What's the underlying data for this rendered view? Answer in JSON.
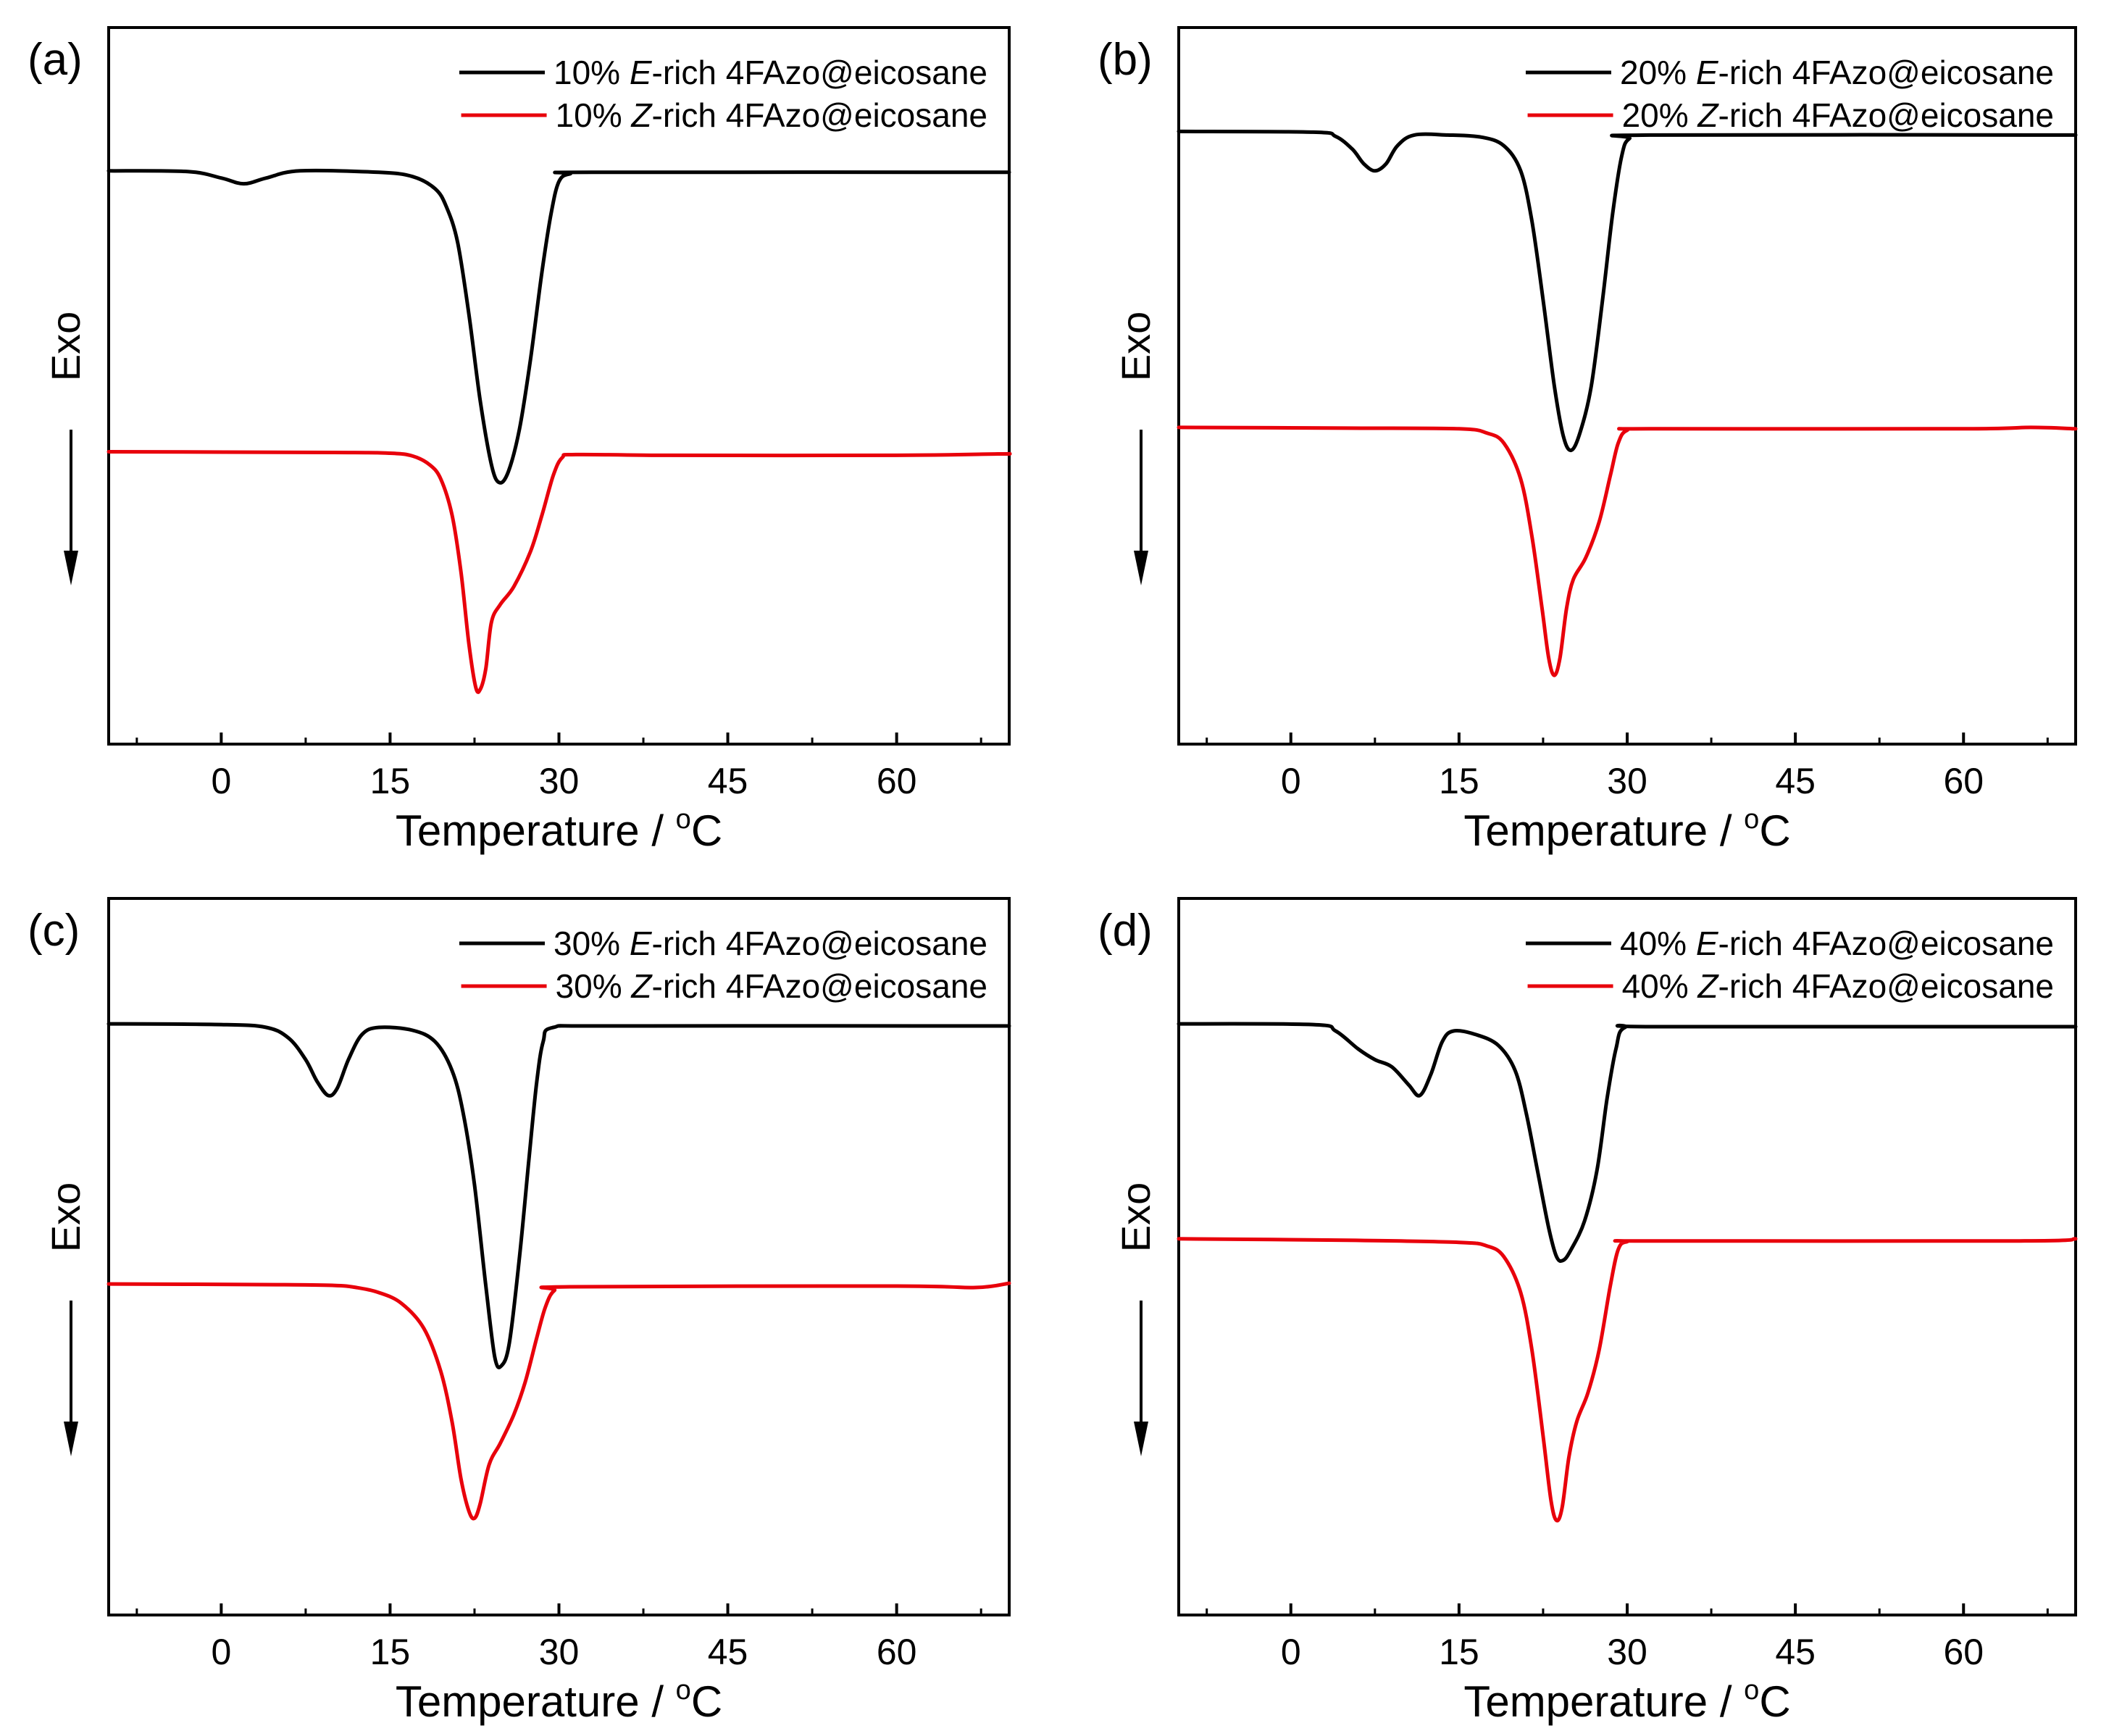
{
  "figure": {
    "colors": {
      "E_rich": "#000000",
      "Z_rich": "#e8000b",
      "axes": "#000000"
    },
    "icons": {
      "exo_arrow": "down-arrow-icon"
    }
  },
  "chart_data": [
    {
      "type": "line",
      "panel_label": "(a)",
      "xlabel": "Temperature / ",
      "xlabel_unit_sup": "o",
      "xlabel_unit": "C",
      "ylabel": "Exo",
      "xlim": [
        -10,
        70
      ],
      "ylim": [
        0,
        100
      ],
      "xticks": [
        0,
        15,
        30,
        45,
        60
      ],
      "xtick_labels": [
        "0",
        "15",
        "30",
        "45",
        "60"
      ],
      "yticks_shown": false,
      "legend_position": "top-right",
      "series": [
        {
          "name": "E",
          "legend": {
            "prefix": "10% ",
            "italic": "E",
            "suffix": "-rich 4FAzo@eicosane"
          },
          "color_key": "E_rich",
          "points": [
            [
              -10,
              80
            ],
            [
              -3,
              79.9
            ],
            [
              0,
              79
            ],
            [
              2,
              78.2
            ],
            [
              4,
              79
            ],
            [
              7,
              80
            ],
            [
              14,
              79.8
            ],
            [
              17,
              79.2
            ],
            [
              19,
              77.5
            ],
            [
              20,
              75
            ],
            [
              21,
              70
            ],
            [
              22,
              60
            ],
            [
              23,
              48
            ],
            [
              24,
              39
            ],
            [
              24.7,
              36.5
            ],
            [
              25.5,
              38
            ],
            [
              26.5,
              44
            ],
            [
              27.5,
              54
            ],
            [
              28.5,
              66
            ],
            [
              29.3,
              74
            ],
            [
              30,
              78.5
            ],
            [
              31,
              79.6
            ],
            [
              33,
              79.8
            ],
            [
              70,
              79.8
            ]
          ]
        },
        {
          "name": "Z",
          "legend": {
            "prefix": "10% ",
            "italic": "Z",
            "suffix": "-rich 4FAzo@eicosane"
          },
          "color_key": "Z_rich",
          "points": [
            [
              -10,
              40.8
            ],
            [
              10,
              40.7
            ],
            [
              15,
              40.6
            ],
            [
              17,
              40.2
            ],
            [
              18.5,
              39
            ],
            [
              19.5,
              37
            ],
            [
              20.5,
              32
            ],
            [
              21.3,
              24
            ],
            [
              22,
              14
            ],
            [
              22.6,
              8
            ],
            [
              23,
              7.6
            ],
            [
              23.5,
              10.5
            ],
            [
              24,
              17
            ],
            [
              24.8,
              19.5
            ],
            [
              26,
              22
            ],
            [
              27.5,
              27
            ],
            [
              28.5,
              32
            ],
            [
              29.5,
              37.5
            ],
            [
              30.3,
              40
            ],
            [
              31.5,
              40.4
            ],
            [
              40,
              40.3
            ],
            [
              60,
              40.3
            ],
            [
              69,
              40.5
            ],
            [
              70,
              40.5
            ]
          ]
        }
      ]
    },
    {
      "type": "line",
      "panel_label": "(b)",
      "xlabel": "Temperature / ",
      "xlabel_unit_sup": "o",
      "xlabel_unit": "C",
      "ylabel": "Exo",
      "xlim": [
        -10,
        70
      ],
      "ylim": [
        0,
        100
      ],
      "xticks": [
        0,
        15,
        30,
        45,
        60
      ],
      "xtick_labels": [
        "0",
        "15",
        "30",
        "45",
        "60"
      ],
      "yticks_shown": false,
      "legend_position": "top-right",
      "series": [
        {
          "name": "E",
          "legend": {
            "prefix": "20% ",
            "italic": "E",
            "suffix": "-rich 4FAzo@eicosane"
          },
          "color_key": "E_rich",
          "points": [
            [
              -10,
              85.5
            ],
            [
              2,
              85.4
            ],
            [
              4,
              84.8
            ],
            [
              5.5,
              83
            ],
            [
              6.5,
              81
            ],
            [
              7.5,
              80
            ],
            [
              8.5,
              81
            ],
            [
              9.5,
              83.5
            ],
            [
              11,
              85
            ],
            [
              14,
              85
            ],
            [
              17,
              84.7
            ],
            [
              19,
              83.5
            ],
            [
              20.5,
              80
            ],
            [
              21.5,
              73
            ],
            [
              22.5,
              62
            ],
            [
              23.5,
              50
            ],
            [
              24.3,
              43
            ],
            [
              25,
              41
            ],
            [
              25.8,
              43.5
            ],
            [
              26.8,
              50
            ],
            [
              27.8,
              62
            ],
            [
              28.7,
              74
            ],
            [
              29.5,
              82
            ],
            [
              30.2,
              84.5
            ],
            [
              32,
              85
            ],
            [
              70,
              85
            ]
          ]
        },
        {
          "name": "Z",
          "legend": {
            "prefix": "20% ",
            "italic": "Z",
            "suffix": "-rich 4FAzo@eicosane"
          },
          "color_key": "Z_rich",
          "points": [
            [
              -10,
              44.2
            ],
            [
              5,
              44.1
            ],
            [
              15,
              44
            ],
            [
              17.5,
              43.4
            ],
            [
              19,
              42
            ],
            [
              20.5,
              37
            ],
            [
              21.5,
              29
            ],
            [
              22.4,
              19
            ],
            [
              23,
              12
            ],
            [
              23.5,
              9.6
            ],
            [
              24,
              12
            ],
            [
              24.6,
              19
            ],
            [
              25.2,
              23
            ],
            [
              26.3,
              26
            ],
            [
              27.5,
              31
            ],
            [
              28.5,
              37.5
            ],
            [
              29.2,
              42
            ],
            [
              30,
              43.8
            ],
            [
              32,
              44
            ],
            [
              60,
              44
            ],
            [
              66,
              44.2
            ],
            [
              70,
              44
            ]
          ]
        }
      ]
    },
    {
      "type": "line",
      "panel_label": "(c)",
      "xlabel": "Temperature / ",
      "xlabel_unit_sup": "o",
      "xlabel_unit": "C",
      "ylabel": "Exo",
      "xlim": [
        -10,
        70
      ],
      "ylim": [
        0,
        100
      ],
      "xticks": [
        0,
        15,
        30,
        45,
        60
      ],
      "xtick_labels": [
        "0",
        "15",
        "30",
        "45",
        "60"
      ],
      "yticks_shown": false,
      "legend_position": "top-right",
      "series": [
        {
          "name": "E",
          "legend": {
            "prefix": "30% ",
            "italic": "E",
            "suffix": "-rich 4FAzo@eicosane"
          },
          "color_key": "E_rich",
          "points": [
            [
              -10,
              82.5
            ],
            [
              0,
              82.4
            ],
            [
              4,
              82
            ],
            [
              6,
              80.5
            ],
            [
              7.5,
              77.5
            ],
            [
              8.5,
              74.5
            ],
            [
              9.5,
              72.5
            ],
            [
              10.3,
              73.5
            ],
            [
              11.3,
              77.5
            ],
            [
              12.5,
              81
            ],
            [
              14,
              82
            ],
            [
              17,
              81.6
            ],
            [
              19,
              80
            ],
            [
              20.5,
              76
            ],
            [
              21.5,
              70
            ],
            [
              22.5,
              60
            ],
            [
              23.5,
              46
            ],
            [
              24.3,
              36
            ],
            [
              24.9,
              34.8
            ],
            [
              25.6,
              38
            ],
            [
              26.5,
              50
            ],
            [
              27.3,
              63
            ],
            [
              28,
              74
            ],
            [
              28.6,
              80
            ],
            [
              29.5,
              82
            ],
            [
              35,
              82.2
            ],
            [
              70,
              82.2
            ]
          ]
        },
        {
          "name": "Z",
          "legend": {
            "prefix": "30% ",
            "italic": "Z",
            "suffix": "-rich 4FAzo@eicosane"
          },
          "color_key": "Z_rich",
          "points": [
            [
              -10,
              46.2
            ],
            [
              5,
              46.1
            ],
            [
              10,
              46
            ],
            [
              12,
              45.7
            ],
            [
              14,
              45
            ],
            [
              16,
              43.5
            ],
            [
              18,
              40
            ],
            [
              19.5,
              34
            ],
            [
              20.5,
              27
            ],
            [
              21.3,
              19
            ],
            [
              22,
              14.5
            ],
            [
              22.5,
              13.5
            ],
            [
              23,
              15.5
            ],
            [
              23.8,
              21
            ],
            [
              24.8,
              24
            ],
            [
              26,
              28
            ],
            [
              27,
              32.5
            ],
            [
              28,
              38.5
            ],
            [
              28.8,
              43
            ],
            [
              29.6,
              45.3
            ],
            [
              31,
              45.8
            ],
            [
              60,
              45.9
            ],
            [
              67,
              45.7
            ],
            [
              70,
              46.3
            ]
          ]
        }
      ]
    },
    {
      "type": "line",
      "panel_label": "(d)",
      "xlabel": "Temperature / ",
      "xlabel_unit_sup": "o",
      "xlabel_unit": "C",
      "ylabel": "Exo",
      "xlim": [
        -10,
        70
      ],
      "ylim": [
        0,
        100
      ],
      "xticks": [
        0,
        15,
        30,
        45,
        60
      ],
      "xtick_labels": [
        "0",
        "15",
        "30",
        "45",
        "60"
      ],
      "yticks_shown": false,
      "legend_position": "top-right",
      "series": [
        {
          "name": "E",
          "legend": {
            "prefix": "40% ",
            "italic": "E",
            "suffix": "-rich 4FAzo@eicosane"
          },
          "color_key": "E_rich",
          "points": [
            [
              -10,
              82.5
            ],
            [
              2,
              82.4
            ],
            [
              4,
              81.5
            ],
            [
              6,
              79
            ],
            [
              7.5,
              77.5
            ],
            [
              9,
              76.5
            ],
            [
              10.5,
              74
            ],
            [
              11.5,
              72.5
            ],
            [
              12.5,
              75.5
            ],
            [
              13.5,
              80
            ],
            [
              14.5,
              81.5
            ],
            [
              16.5,
              81
            ],
            [
              18.5,
              79.5
            ],
            [
              20,
              76
            ],
            [
              21,
              70
            ],
            [
              22,
              62
            ],
            [
              23,
              54
            ],
            [
              23.7,
              50
            ],
            [
              24.3,
              49.5
            ],
            [
              25,
              51
            ],
            [
              26.2,
              55
            ],
            [
              27.3,
              62
            ],
            [
              28.2,
              72
            ],
            [
              29,
              79
            ],
            [
              29.8,
              82
            ],
            [
              33,
              82.1
            ],
            [
              70,
              82.1
            ]
          ]
        },
        {
          "name": "Z",
          "legend": {
            "prefix": "40% ",
            "italic": "Z",
            "suffix": "-rich 4FAzo@eicosane"
          },
          "color_key": "Z_rich",
          "points": [
            [
              -10,
              52.5
            ],
            [
              5,
              52.3
            ],
            [
              15,
              52
            ],
            [
              17.5,
              51.5
            ],
            [
              19,
              50
            ],
            [
              20.5,
              45
            ],
            [
              21.5,
              37
            ],
            [
              22.5,
              25
            ],
            [
              23.2,
              16
            ],
            [
              23.7,
              13.2
            ],
            [
              24.2,
              15
            ],
            [
              24.8,
              22
            ],
            [
              25.5,
              27
            ],
            [
              26.5,
              31
            ],
            [
              27.5,
              37
            ],
            [
              28.5,
              46
            ],
            [
              29.2,
              51
            ],
            [
              30,
              52.1
            ],
            [
              32,
              52.2
            ],
            [
              65,
              52.2
            ],
            [
              70,
              52.5
            ]
          ]
        }
      ]
    }
  ]
}
